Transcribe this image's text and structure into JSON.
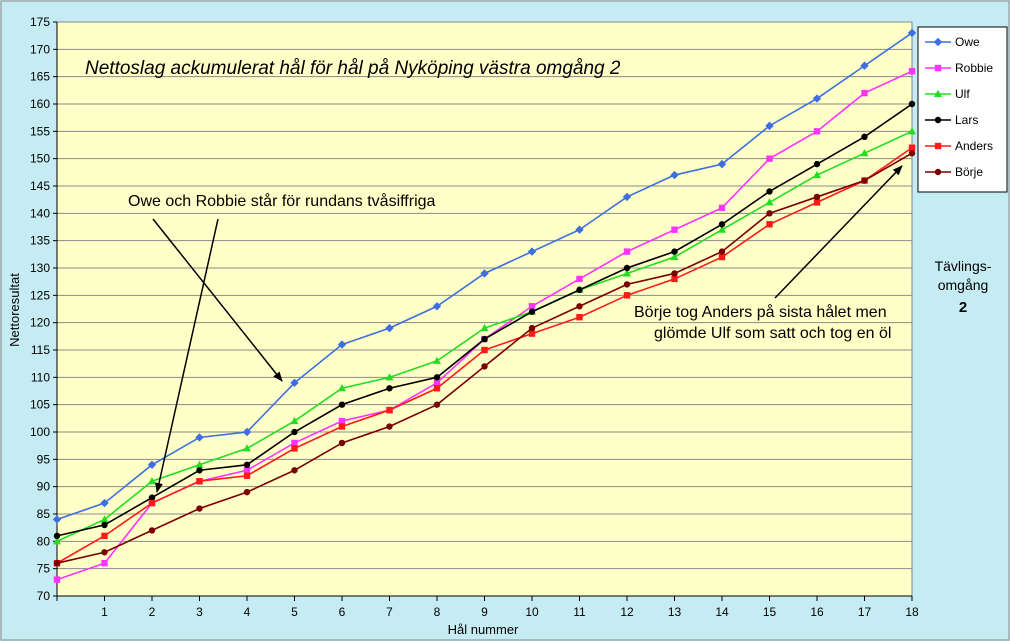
{
  "chart_data": {
    "type": "line",
    "title": "Nettoslag ackumulerat hål för hål på Nyköping västra omgång 2",
    "xlabel": "Hål nummer",
    "ylabel": "Nettoresultat",
    "x": [
      0,
      1,
      2,
      3,
      4,
      5,
      6,
      7,
      8,
      9,
      10,
      11,
      12,
      13,
      14,
      15,
      16,
      17,
      18
    ],
    "x_tick_labels": [
      "1",
      "2",
      "3",
      "4",
      "5",
      "6",
      "7",
      "8",
      "9",
      "10",
      "11",
      "12",
      "13",
      "14",
      "15",
      "16",
      "17",
      "18"
    ],
    "xlim": [
      0,
      18
    ],
    "ylim": [
      70,
      175
    ],
    "y_tick_labels": [
      "70",
      "75",
      "80",
      "85",
      "90",
      "95",
      "100",
      "105",
      "110",
      "115",
      "120",
      "125",
      "130",
      "135",
      "140",
      "145",
      "150",
      "155",
      "160",
      "165",
      "170",
      "175"
    ],
    "grid": "horizontal",
    "legend": "top-right",
    "series": [
      {
        "name": "Owe",
        "color": "#3d6fe0",
        "marker": "diamond",
        "values": [
          84,
          87,
          94,
          99,
          100,
          109,
          116,
          119,
          123,
          129,
          133,
          137,
          143,
          147,
          149,
          156,
          161,
          167,
          173
        ]
      },
      {
        "name": "Robbie",
        "color": "#ff33ff",
        "marker": "square",
        "values": [
          73,
          76,
          87,
          91,
          93,
          98,
          102,
          104,
          109,
          117,
          123,
          128,
          133,
          137,
          141,
          150,
          155,
          162,
          166
        ]
      },
      {
        "name": "Ulf",
        "color": "#22dd22",
        "marker": "triangle",
        "values": [
          80,
          84,
          91,
          94,
          97,
          102,
          108,
          110,
          113,
          119,
          122,
          126,
          129,
          132,
          137,
          142,
          147,
          151,
          155
        ]
      },
      {
        "name": "Lars",
        "color": "#000000",
        "marker": "circle",
        "values": [
          81,
          83,
          88,
          93,
          94,
          100,
          105,
          108,
          110,
          117,
          122,
          126,
          130,
          133,
          138,
          144,
          149,
          154,
          160
        ]
      },
      {
        "name": "Anders",
        "color": "#ff1a1a",
        "marker": "square",
        "values": [
          76,
          81,
          87,
          91,
          92,
          97,
          101,
          104,
          108,
          115,
          118,
          121,
          125,
          128,
          132,
          138,
          142,
          146,
          152
        ]
      },
      {
        "name": "Börje",
        "color": "#7a0000",
        "marker": "circle",
        "values": [
          76,
          78,
          82,
          86,
          89,
          93,
          98,
          101,
          105,
          112,
          119,
          123,
          127,
          129,
          133,
          140,
          143,
          146,
          151
        ]
      }
    ],
    "annotations": [
      {
        "lines": [
          "Owe och Robbie står för rundans tvåsiffriga"
        ]
      },
      {
        "lines": [
          "Börje tog Anders på sista hålet men",
          "glömde Ulf som satt och tog en öl"
        ]
      }
    ],
    "side_label": {
      "line1": "Tävlings-",
      "line2": "omgång",
      "value": "2"
    }
  }
}
